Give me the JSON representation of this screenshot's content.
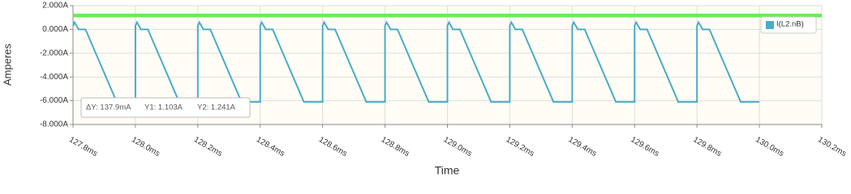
{
  "chart_data": {
    "type": "line",
    "x_label": "Time",
    "y_label": "Amperes",
    "x": [
      127.8,
      127.805,
      127.818,
      127.84,
      127.94,
      128.0,
      128.0,
      128.005,
      128.018,
      128.04,
      128.14,
      128.2,
      128.2,
      128.205,
      128.218,
      128.24,
      128.34,
      128.4,
      128.4,
      128.405,
      128.418,
      128.44,
      128.54,
      128.6,
      128.6,
      128.605,
      128.618,
      128.64,
      128.74,
      128.8,
      128.8,
      128.805,
      128.818,
      128.84,
      128.94,
      129.0,
      129.0,
      129.005,
      129.018,
      129.04,
      129.14,
      129.2,
      129.2,
      129.205,
      129.218,
      129.24,
      129.34,
      129.4,
      129.4,
      129.405,
      129.418,
      129.44,
      129.54,
      129.6,
      129.6,
      129.605,
      129.618,
      129.64,
      129.74,
      129.8,
      129.8,
      129.805,
      129.818,
      129.84,
      129.94,
      130.0
    ],
    "series": [
      {
        "name": "I(L2.nB)",
        "color": "#4bacc6",
        "values": [
          0.3,
          0.6,
          0,
          0,
          -6.1,
          -6.1,
          0.3,
          0.6,
          0,
          0,
          -6.1,
          -6.1,
          0.3,
          0.6,
          0,
          0,
          -6.1,
          -6.1,
          0.3,
          0.6,
          0,
          0,
          -6.1,
          -6.1,
          0.3,
          0.6,
          0,
          0,
          -6.1,
          -6.1,
          0.3,
          0.6,
          0,
          0,
          -6.1,
          -6.1,
          0.3,
          0.6,
          0,
          0,
          -6.1,
          -6.1,
          0.3,
          0.6,
          0,
          0,
          -6.1,
          -6.1,
          0.3,
          0.6,
          0,
          0,
          -6.1,
          -6.1,
          0.3,
          0.6,
          0,
          0,
          -6.1,
          -6.1,
          0.3,
          0.6,
          0,
          0,
          -6.1,
          -6.1
        ]
      }
    ],
    "cursors": {
      "color": "#66ee55",
      "values": [
        1.103,
        1.241
      ]
    },
    "annotation": [
      "ΔY: 137.9mA",
      "Y1: 1.103A",
      "Y2: 1.241A"
    ],
    "xlim": [
      127.8,
      130.2
    ],
    "xticks": [
      {
        "value": 127.8,
        "label": "127.8ms"
      },
      {
        "value": 128.0,
        "label": "128.0ms"
      },
      {
        "value": 128.2,
        "label": "128.2ms"
      },
      {
        "value": 128.4,
        "label": "128.4ms"
      },
      {
        "value": 128.6,
        "label": "128.6ms"
      },
      {
        "value": 128.8,
        "label": "128.8ms"
      },
      {
        "value": 129.0,
        "label": "129.0ms"
      },
      {
        "value": 129.2,
        "label": "129.2ms"
      },
      {
        "value": 129.4,
        "label": "129.4ms"
      },
      {
        "value": 129.6,
        "label": "129.6ms"
      },
      {
        "value": 129.8,
        "label": "129.8ms"
      },
      {
        "value": 130.0,
        "label": "130.0ms"
      },
      {
        "value": 130.2,
        "label": "130.2ms"
      }
    ],
    "ylim": [
      -8,
      2
    ],
    "yticks": [
      {
        "value": 2,
        "label": "2.000A"
      },
      {
        "value": 0,
        "label": "0.000A"
      },
      {
        "value": -2,
        "label": "-2.000A"
      },
      {
        "value": -4,
        "label": "-4.000A"
      },
      {
        "value": -6,
        "label": "-6.000A"
      },
      {
        "value": -8,
        "label": "-8.000A"
      }
    ],
    "grid": true
  }
}
